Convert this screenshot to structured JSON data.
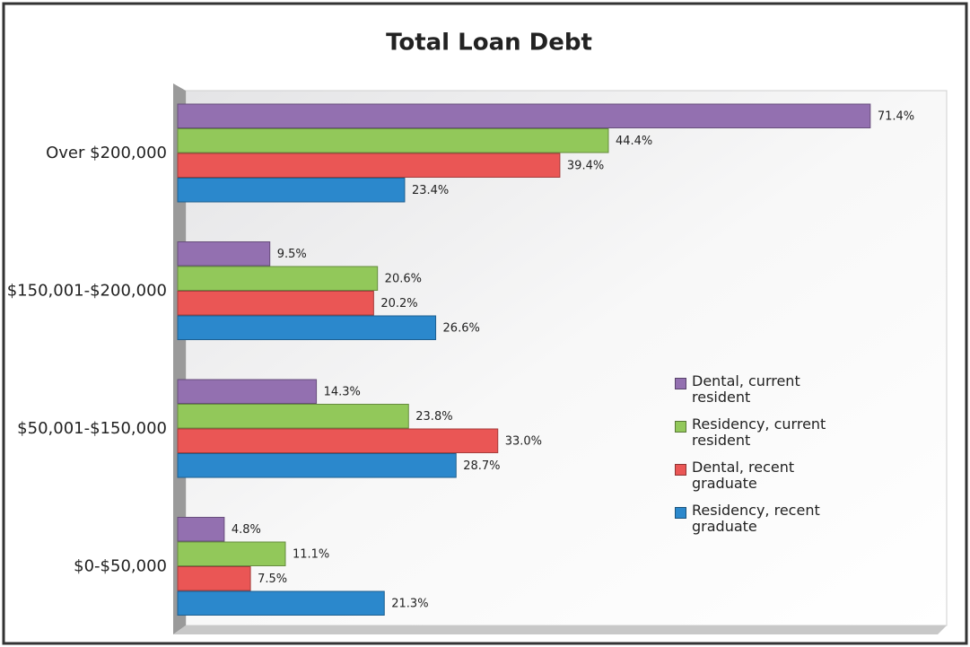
{
  "chart_data": {
    "type": "bar",
    "orientation": "horizontal",
    "title": "Total Loan Debt",
    "categories": [
      "Over $200,000",
      "$150,001-$200,000",
      "$50,001-$150,000",
      "$0-$50,000"
    ],
    "series": [
      {
        "name": "Dental, current resident",
        "color": "#9370b0",
        "values": [
          71.4,
          9.5,
          14.3,
          4.8
        ],
        "value_labels": [
          "71.4%",
          "9.5%",
          "14.3%",
          "4.8%"
        ]
      },
      {
        "name": "Residency, current resident",
        "color": "#92c85a",
        "values": [
          44.4,
          20.6,
          23.8,
          11.1
        ],
        "value_labels": [
          "44.4%",
          "20.6%",
          "23.8%",
          "11.1%"
        ]
      },
      {
        "name": "Dental, recent graduate",
        "color": "#ea5655",
        "values": [
          39.4,
          20.2,
          33.0,
          7.5
        ],
        "value_labels": [
          "39.4%",
          "20.2%",
          "33.0%",
          "7.5%"
        ]
      },
      {
        "name": "Residency, recent graduate",
        "color": "#2b88cc",
        "values": [
          23.4,
          26.6,
          28.7,
          21.3
        ],
        "value_labels": [
          "23.4%",
          "26.6%",
          "28.7%",
          "21.3%"
        ]
      }
    ]
  }
}
